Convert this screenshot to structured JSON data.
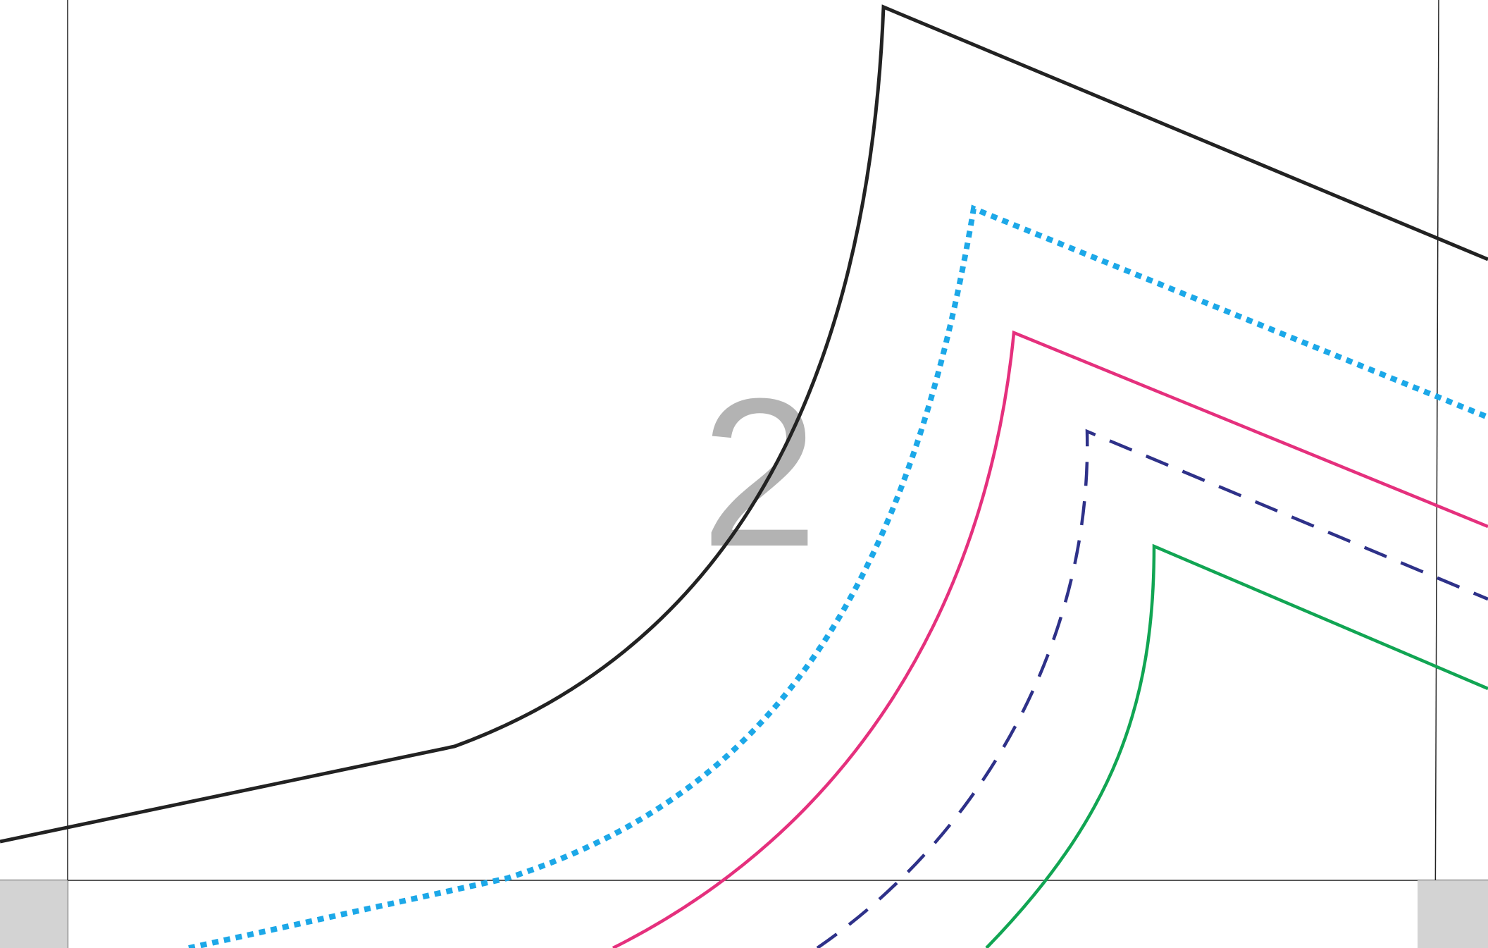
{
  "page": {
    "number": "2"
  },
  "colors": {
    "background": "#ffffff",
    "grid_line": "#222222",
    "corner_tab": "#d3d3d3",
    "page_number": "#b3b3b3"
  },
  "lines": [
    {
      "id": "outer-black-solid",
      "color": "#222222",
      "style": "solid"
    },
    {
      "id": "blue-dotted",
      "color": "#1ca8e8",
      "style": "dotted"
    },
    {
      "id": "pink-solid",
      "color": "#e5307d",
      "style": "solid"
    },
    {
      "id": "navy-dashed",
      "color": "#2e3189",
      "style": "dashed"
    },
    {
      "id": "green-solid",
      "color": "#11a553",
      "style": "solid"
    }
  ]
}
